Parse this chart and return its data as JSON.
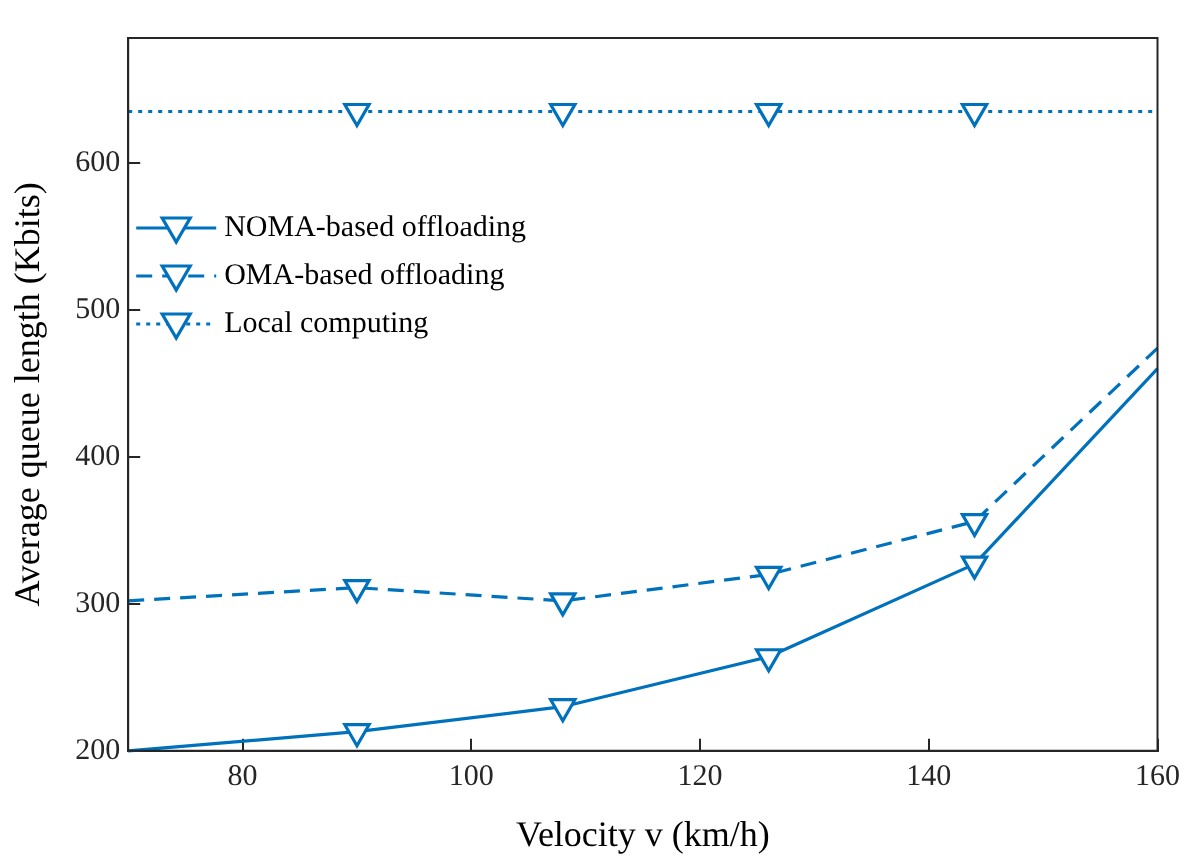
{
  "chart_data": {
    "type": "line",
    "xlabel": "Velocity v (km/h)",
    "ylabel": "Average queue length (Kbits)",
    "x": [
      70,
      90,
      108,
      126,
      144,
      160
    ],
    "series": [
      {
        "name": "NOMA-based offloading",
        "color": "#0072bd",
        "line_style": "solid",
        "values": [
          200,
          213,
          230,
          264,
          327,
          460
        ]
      },
      {
        "name": "OMA-based offloading",
        "color": "#0072bd",
        "line_style": "dashed",
        "values": [
          302,
          311,
          302,
          320,
          356,
          474
        ]
      },
      {
        "name": "Local computing",
        "color": "#0072bd",
        "line_style": "dotted",
        "values": [
          635,
          635,
          635,
          635,
          635,
          635
        ]
      }
    ],
    "marker": "triangle",
    "xlim": [
      70,
      160
    ],
    "xticks": [
      80,
      100,
      120,
      140,
      160
    ],
    "ylim": [
      200,
      685
    ],
    "yticks": [
      200,
      300,
      400,
      500,
      600
    ],
    "grid": false,
    "legend": "top left"
  }
}
